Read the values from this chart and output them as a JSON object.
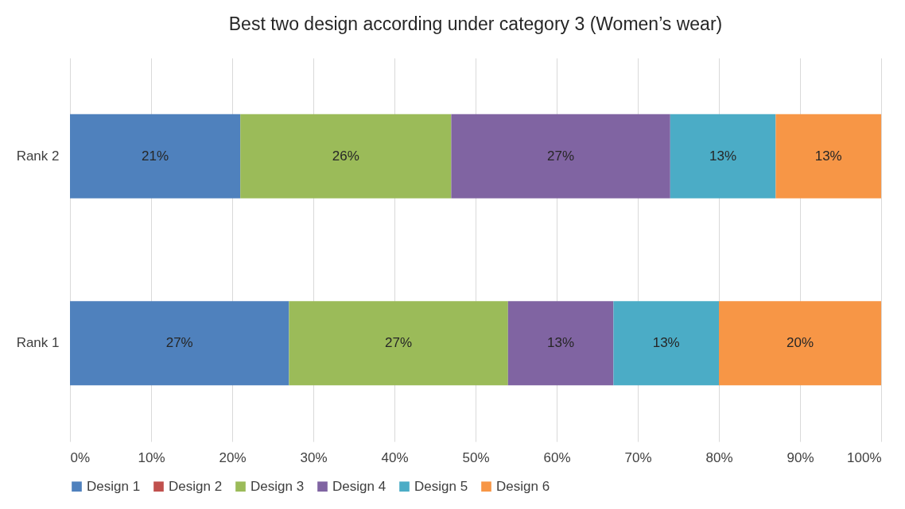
{
  "chart_data": {
    "type": "bar",
    "title": "Best two design according under category 3 (Women’s wear)",
    "orientation": "horizontal",
    "stacked": true,
    "categories": [
      "Rank 2",
      "Rank 1"
    ],
    "xlim": [
      0,
      100
    ],
    "xticks": [
      {
        "value": 0,
        "label": "0%"
      },
      {
        "value": 10,
        "label": "10%"
      },
      {
        "value": 20,
        "label": "20%"
      },
      {
        "value": 30,
        "label": "30%"
      },
      {
        "value": 40,
        "label": "40%"
      },
      {
        "value": 50,
        "label": "50%"
      },
      {
        "value": 60,
        "label": "60%"
      },
      {
        "value": 70,
        "label": "70%"
      },
      {
        "value": 80,
        "label": "80%"
      },
      {
        "value": 90,
        "label": "90%"
      },
      {
        "value": 100,
        "label": "100%"
      }
    ],
    "grid": "x",
    "legend": "bottom",
    "series": [
      {
        "name": "Design 1",
        "color": "#4f81bd",
        "values": [
          21,
          27
        ],
        "value_labels": [
          "21%",
          "27%"
        ]
      },
      {
        "name": "Design 2",
        "color": "#c0504d",
        "values": [
          0,
          0
        ],
        "value_labels": [
          null,
          null
        ]
      },
      {
        "name": "Design 3",
        "color": "#9bbb59",
        "values": [
          26,
          27
        ],
        "value_labels": [
          "26%",
          "27%"
        ]
      },
      {
        "name": "Design 4",
        "color": "#8064a2",
        "values": [
          27,
          13
        ],
        "value_labels": [
          "27%",
          "13%"
        ]
      },
      {
        "name": "Design 5",
        "color": "#4bacc6",
        "values": [
          13,
          13
        ],
        "value_labels": [
          "13%",
          "13%"
        ]
      },
      {
        "name": "Design 6",
        "color": "#f79646",
        "values": [
          13,
          20
        ],
        "value_labels": [
          "13%",
          "20%"
        ]
      }
    ]
  }
}
